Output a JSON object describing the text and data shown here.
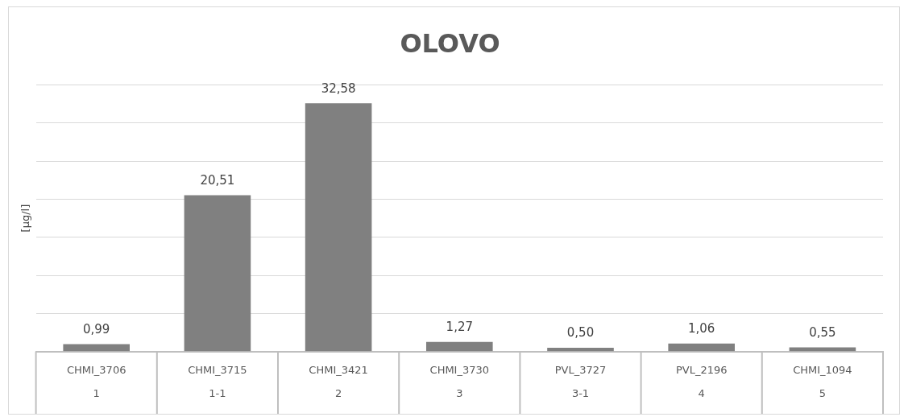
{
  "chart_data": {
    "type": "bar",
    "title": "OLOVO",
    "ylabel": "[µg/l]",
    "categories": [
      "CHMI_3706\n1",
      "CHMI_3715\n1-1",
      "CHMI_3421\n2",
      "CHMI_3730\n3",
      "PVL_3727\n3-1",
      "PVL_2196\n4",
      "CHMI_1094\n5"
    ],
    "values": [
      0.99,
      20.51,
      32.58,
      1.27,
      0.5,
      1.06,
      0.55
    ],
    "color": "#808080",
    "value_labels": [
      "0,99",
      "20,51",
      "32,58",
      "1,27",
      "0,50",
      "1,06",
      "0,55"
    ],
    "tick_labels": "x",
    "grid": "y",
    "legend": false
  }
}
